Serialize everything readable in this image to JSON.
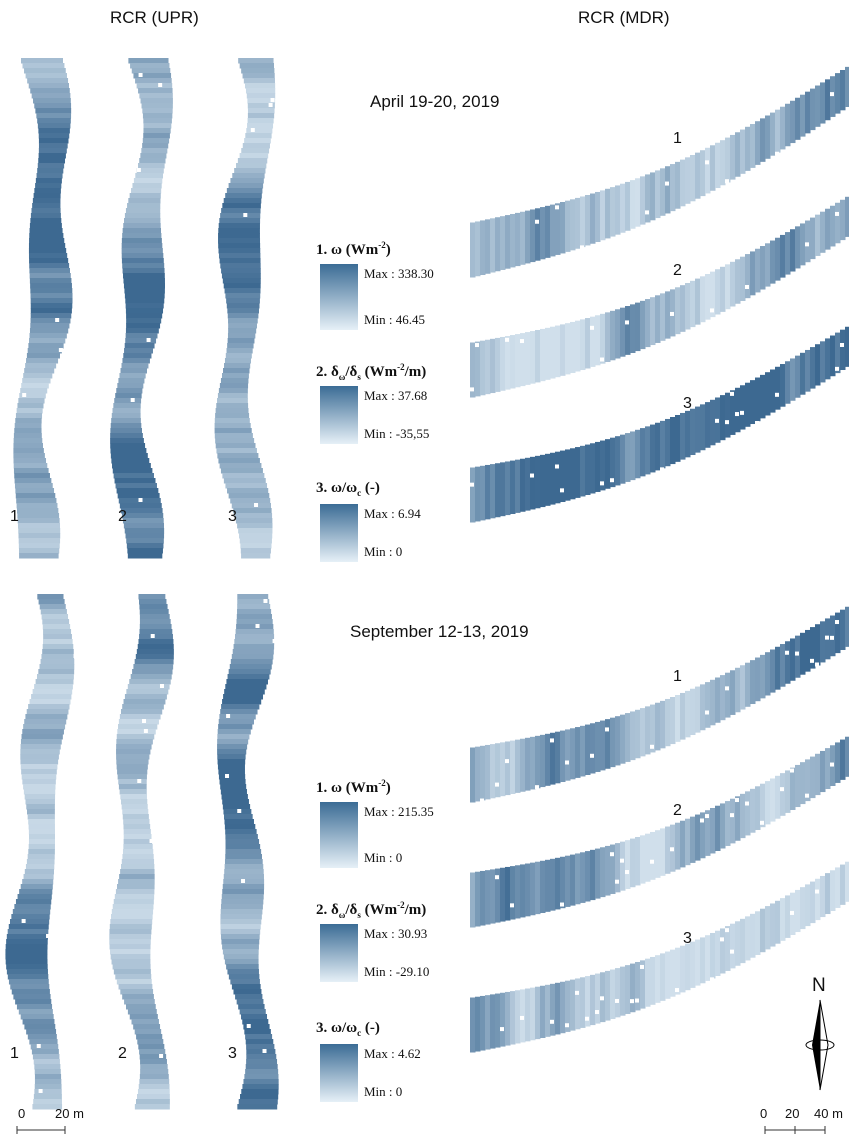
{
  "headers": {
    "left": "RCR (UPR)",
    "right": "RCR (MDR)"
  },
  "panels": [
    {
      "date": "April 19-20, 2019",
      "upr_labels": [
        "1",
        "2",
        "3"
      ],
      "mdr_labels": [
        "1",
        "2",
        "3"
      ],
      "legend": [
        {
          "title": [
            "1. ω (Wm",
            "-2",
            ")"
          ],
          "max": "Max : 338.30",
          "min": "Min : 46.45"
        },
        {
          "title": [
            "2. δ",
            "ω",
            "/δ",
            "s",
            " (Wm",
            "-2",
            "/m)"
          ],
          "max": "Max : 37.68",
          "min": "Min : -35,55"
        },
        {
          "title": [
            "3. ω/ω",
            "c",
            " (-)"
          ],
          "max": "Max : 6.94",
          "min": "Min : 0"
        }
      ]
    },
    {
      "date": "September 12-13, 2019",
      "upr_labels": [
        "1",
        "2",
        "3"
      ],
      "mdr_labels": [
        "1",
        "2",
        "3"
      ],
      "legend": [
        {
          "title": [
            "1. ω (Wm",
            "-2",
            ")"
          ],
          "max": "Max : 215.35",
          "min": "Min : 0"
        },
        {
          "title": [
            "2. δ",
            "ω",
            "/δ",
            "s",
            " (Wm",
            "-2",
            "/m)"
          ],
          "max": "Max : 30.93",
          "min": "Min : -29.10"
        },
        {
          "title": [
            "3. ω/ω",
            "c",
            " (-)"
          ],
          "max": "Max : 4.62",
          "min": "Min : 0"
        }
      ]
    }
  ],
  "scale_left": [
    "0",
    "20 m"
  ],
  "scale_right": [
    "0",
    "20",
    "40 m"
  ],
  "north": "N"
}
